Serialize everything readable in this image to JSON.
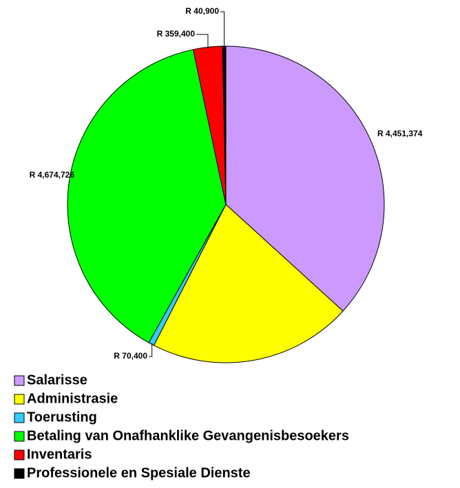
{
  "chart_data": {
    "type": "pie",
    "categories": [
      "Salarisse",
      "Administrasie",
      "Toerusting",
      "Betaling van Onafhanklike Gevangenisbesoekers",
      "Inventaris",
      "Professionele en Spesiale Dienste"
    ],
    "values": [
      4451374,
      2513000,
      70400,
      4674726,
      359400,
      40900
    ],
    "value_labels": [
      "R 4,451,374",
      null,
      "R 70,400",
      "R 4,674,726",
      "R 359,400",
      "R 40,900"
    ],
    "colors": [
      "#cc99ff",
      "#ffff00",
      "#33ccff",
      "#00ff00",
      "#ff0000",
      "#000000"
    ]
  }
}
